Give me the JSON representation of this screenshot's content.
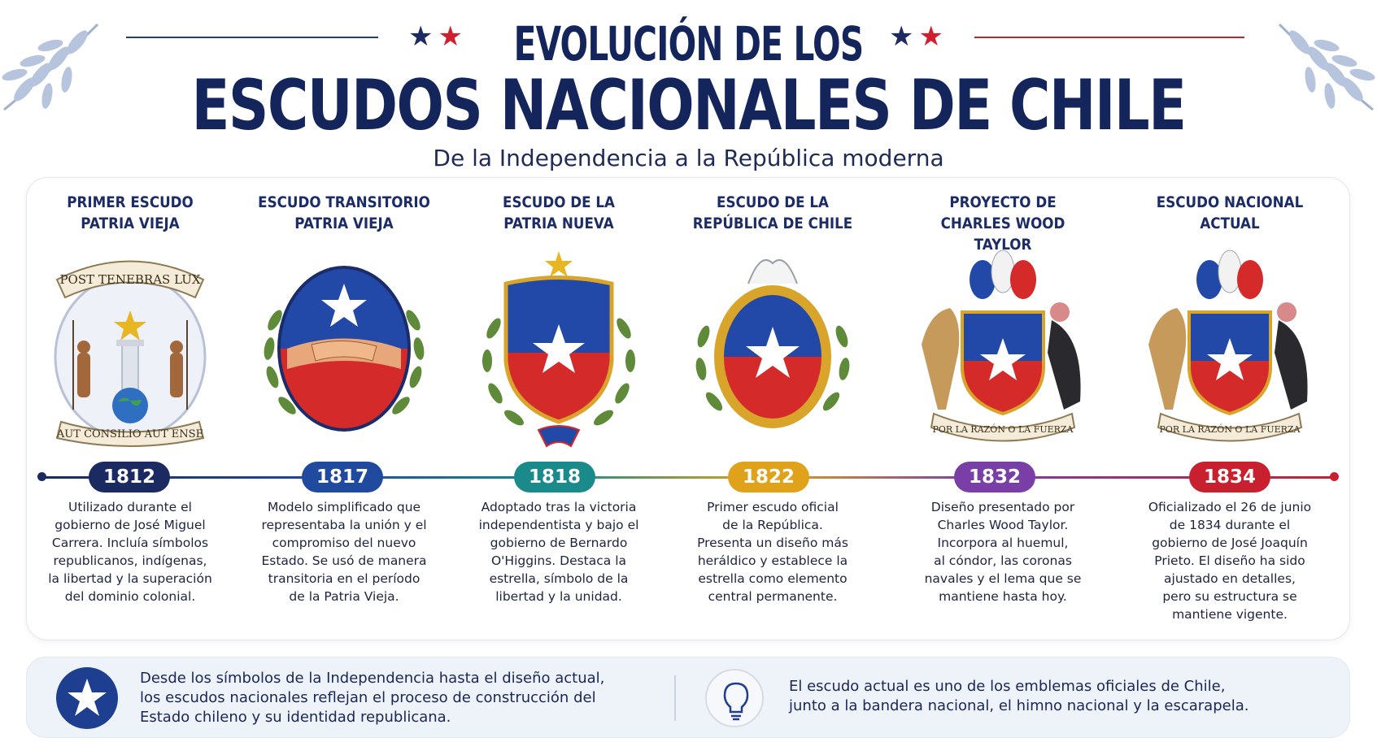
{
  "header": {
    "title_line1": "EVOLUCIÓN DE LOS",
    "title_line2": "ESCUDOS NACIONALES DE CHILE",
    "subtitle": "De la Independencia a la República moderna"
  },
  "colors": {
    "navy": "#14255b",
    "red": "#d0202f",
    "blue": "#1f4fb0",
    "gold": "#e0a21a",
    "teal": "#1a8a8a",
    "purple": "#7a3fa6"
  },
  "coats": [
    {
      "title": "PRIMER ESCUDO\nPATRIA VIEJA",
      "year": "1812",
      "year_color": "#1b2a60",
      "description": "Utilizado durante el\ngobierno de José Miguel\nCarrera. Incluía símbolos\nrepublicanos, indígenas,\nla libertad y la superación\ndel dominio colonial.",
      "motto_top": "POST TENEBRAS LUX",
      "motto_bottom": "AUT CONSILIO AUT ENSE",
      "icon": "first-coat-icon"
    },
    {
      "title": "ESCUDO TRANSITORIO\nPATRIA VIEJA",
      "year": "1817",
      "year_color": "#1f4a9e",
      "description": "Modelo simplificado que\nrepresentaba la unión y el\ncompromiso del nuevo\nEstado. Se usó de manera\ntransitoria en el período\nde la Patria Vieja.",
      "icon": "handshake-coat-icon"
    },
    {
      "title": "ESCUDO DE LA\nPATRIA NUEVA",
      "year": "1818",
      "year_color": "#1a8a8a",
      "description": "Adoptado tras la victoria\nindependentista y bajo el\ngobierno de Bernardo\nO'Higgins. Destaca la\nestrella, símbolo de la\nlibertad y la unidad.",
      "icon": "patria-nueva-coat-icon"
    },
    {
      "title": "ESCUDO DE LA\nREPÚBLICA DE CHILE",
      "year": "1822",
      "year_color": "#e0a21a",
      "description": "Primer escudo oficial\nde la República.\nPresenta un diseño más\nheráldico y establece la\nestrella como elemento\ncentral permanente.",
      "icon": "republic-coat-icon"
    },
    {
      "title": "PROYECTO DE\nCHARLES WOOD TAYLOR",
      "year": "1832",
      "year_color": "#7a3fa6",
      "description": "Diseño presentado por\nCharles Wood Taylor.\nIncorpora al huemul,\nal cóndor, las coronas\nnavales y el lema que se\nmantiene hasta hoy.",
      "motto": "POR LA RAZÓN O LA FUERZA",
      "icon": "huemul-condor-coat-icon"
    },
    {
      "title": "ESCUDO NACIONAL\nACTUAL",
      "year": "1834",
      "year_color": "#c8202f",
      "description": "Oficializado el 26 de junio\nde 1834 durante el\ngobierno de José Joaquín\nPrieto. El diseño ha sido\najustado en detalles,\npero su estructura se\nmantiene vigente.",
      "motto": "POR LA RAZÓN O LA FUERZA",
      "icon": "current-coat-icon"
    }
  ],
  "footer": {
    "left_text": "Desde los símbolos de la Independencia hasta el diseño actual,\nlos escudos nacionales reflejan el proceso de construcción del\nEstado chileno y su identidad republicana.",
    "right_text": "El escudo actual es uno de los emblemas oficiales de Chile,\njunto a la bandera nacional, el himno nacional y la escarapela.",
    "left_icon": "star-badge-icon",
    "right_icon": "lightbulb-icon"
  }
}
